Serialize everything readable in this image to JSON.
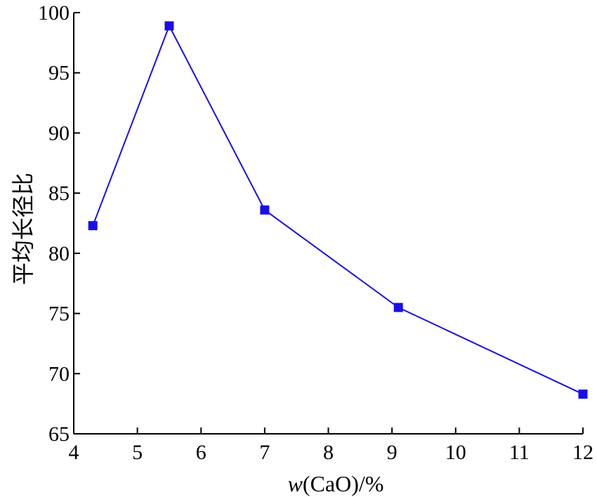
{
  "chart_data": {
    "type": "line",
    "xlabel_prefix": "w",
    "xlabel_suffix": "(CaO)/%",
    "ylabel": "平均长径比",
    "xlim": [
      4,
      12
    ],
    "ylim": [
      65,
      100
    ],
    "xticks": [
      4,
      5,
      6,
      7,
      8,
      9,
      10,
      11,
      12
    ],
    "yticks": [
      65,
      70,
      75,
      80,
      85,
      90,
      95,
      100
    ],
    "grid": false,
    "series": [
      {
        "color": "#1a0fe6",
        "marker": "square",
        "points": [
          {
            "x": 4.3,
            "y": 82.3
          },
          {
            "x": 5.5,
            "y": 98.9
          },
          {
            "x": 7.0,
            "y": 83.6
          },
          {
            "x": 9.1,
            "y": 75.5
          },
          {
            "x": 12.0,
            "y": 68.3
          }
        ]
      }
    ]
  }
}
